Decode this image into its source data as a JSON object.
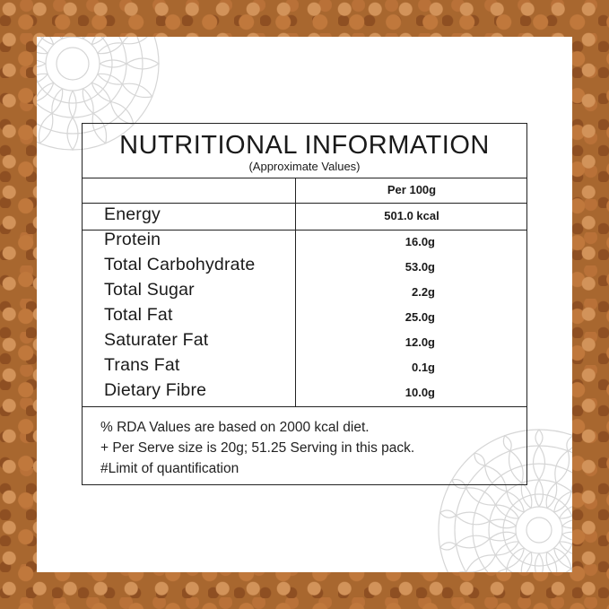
{
  "title": "NUTRITIONAL INFORMATION",
  "subtitle": "(Approximate Values)",
  "column_header": "Per 100g",
  "energy": {
    "name": "Energy",
    "value": "501.0 kcal"
  },
  "nutrients": [
    {
      "name": "Protein",
      "value": "16.0g"
    },
    {
      "name": "Total Carbohydrate",
      "value": "53.0g"
    },
    {
      "name": "Total Sugar",
      "value": "2.2g"
    },
    {
      "name": "Total Fat",
      "value": "25.0g"
    },
    {
      "name": "Saturater Fat",
      "value": "12.0g"
    },
    {
      "name": "Trans Fat",
      "value": "0.1g"
    },
    {
      "name": "Dietary Fibre",
      "value": "10.0g"
    }
  ],
  "notes": [
    "% RDA Values are based on 2000 kcal diet.",
    "+ Per Serve size is 20g; 51.25 Serving in this pack.",
    "#Limit of quantification"
  ],
  "colors": {
    "background": "#a8672f",
    "card": "#ffffff",
    "text": "#1a1a1a",
    "border": "#222222",
    "ornament": "#d8d8d8"
  }
}
